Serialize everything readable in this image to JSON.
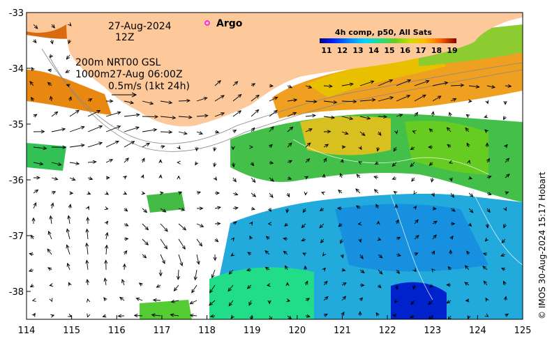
{
  "map": {
    "region": "Great Australian Bight / SW Australia",
    "lon_range": [
      114,
      125
    ],
    "lat_range": [
      -38.5,
      -33
    ],
    "x_ticks": [
      "114",
      "115",
      "116",
      "117",
      "118",
      "119",
      "120",
      "121",
      "122",
      "123",
      "124",
      "125"
    ],
    "y_ticks": [
      "-33",
      "-34",
      "-35",
      "-36",
      "-37",
      "-38"
    ],
    "land_color": "#fdc99a",
    "date_line1": "27-Aug-2024",
    "date_line2": "12Z",
    "argo_label": "Argo",
    "argo_color": "#ff00ff",
    "contour_info_1": "200m  NRT00 GSL",
    "contour_info_2": "1000m27-Aug 06:00Z",
    "scale_label": "0.5m/s (1kt 24h)",
    "colorbar": {
      "title": "4h comp, p50, All Sats",
      "ticks": [
        "11",
        "12",
        "13",
        "14",
        "15",
        "16",
        "17",
        "18",
        "19"
      ],
      "colors": [
        "#00007f",
        "#0022ff",
        "#0088ff",
        "#00d4ff",
        "#22dd88",
        "#66cc22",
        "#ccdd00",
        "#ffbb00",
        "#ff6600",
        "#cc2200",
        "#880000"
      ]
    },
    "credit": "© IMOS 30-Aug-2024 15:17 Hobart"
  }
}
